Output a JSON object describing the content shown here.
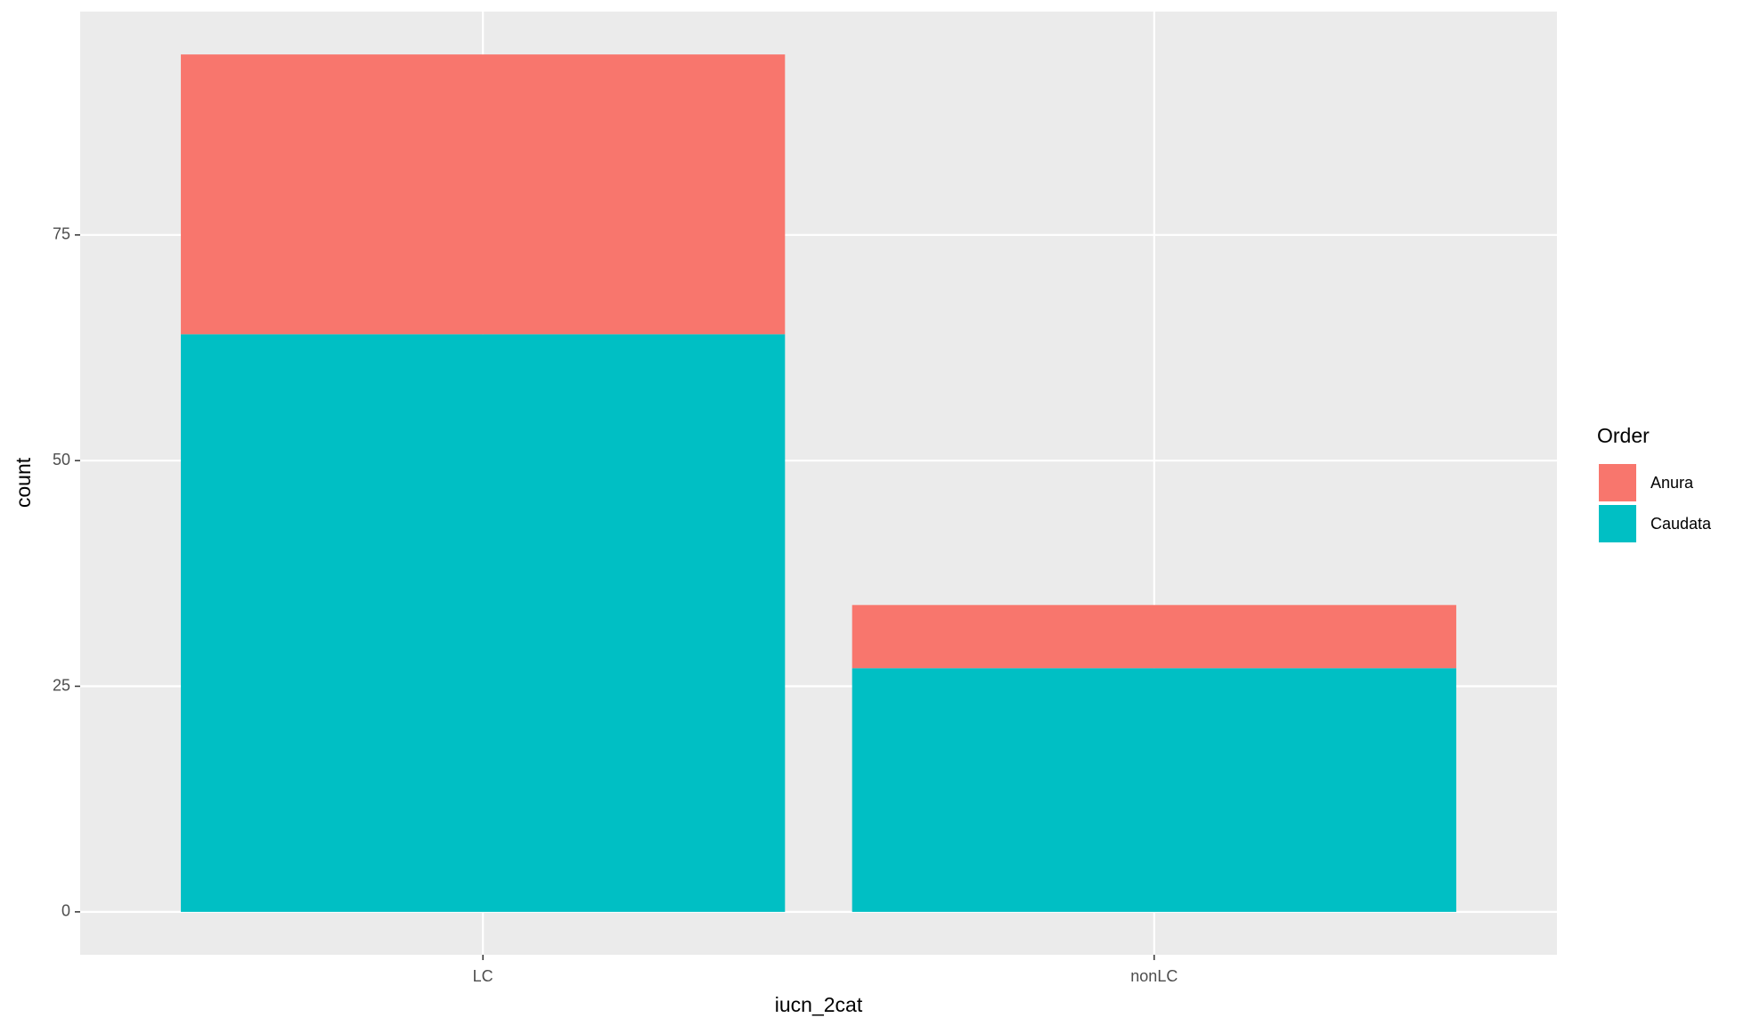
{
  "chart_data": {
    "type": "stacked_bar",
    "x_label": "iucn_2cat",
    "y_label": "count",
    "categories": [
      "LC",
      "nonLC"
    ],
    "series": [
      {
        "name": "Caudata",
        "color": "#00bfc4",
        "values": [
          64,
          27
        ]
      },
      {
        "name": "Anura",
        "color": "#f8766d",
        "values": [
          31,
          7
        ]
      }
    ],
    "ylim": [
      -4.75,
      99.75
    ],
    "yticks": [
      0,
      25,
      50,
      75
    ],
    "grid": true,
    "legend_title": "Order",
    "legend_position": "right"
  }
}
